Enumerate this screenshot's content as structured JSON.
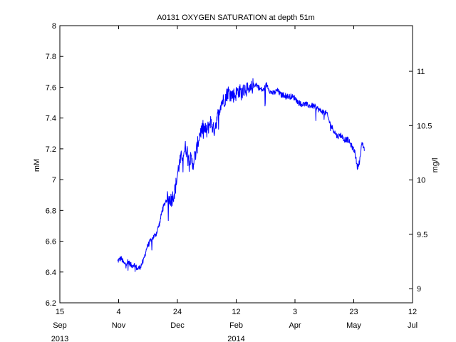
{
  "chart_data": {
    "type": "line",
    "title": "A0131 OXYGEN SATURATION at depth 51m",
    "ylabel": "mM",
    "ylabel_right": "mg/l",
    "xlabel": "",
    "ylim": [
      6.2,
      8.0
    ],
    "yticks": [
      "6.2",
      "6.4",
      "6.6",
      "6.8",
      "7",
      "7.2",
      "7.4",
      "7.6",
      "7.8",
      "8"
    ],
    "ylim_right": [
      8.87,
      11.42
    ],
    "yticks_right": [
      "9",
      "9.5",
      "10",
      "10.5",
      "11"
    ],
    "xlim": [
      "2013-09-15",
      "2014-07-12"
    ],
    "xticks": [
      {
        "date": "2013-09-15",
        "day": "15",
        "month": "Sep",
        "year": "2013"
      },
      {
        "date": "2013-11-04",
        "day": "4",
        "month": "Nov",
        "year": ""
      },
      {
        "date": "2013-12-24",
        "day": "24",
        "month": "Dec",
        "year": ""
      },
      {
        "date": "2014-02-12",
        "day": "12",
        "month": "Feb",
        "year": "2014"
      },
      {
        "date": "2014-04-03",
        "day": "3",
        "month": "Apr",
        "year": ""
      },
      {
        "date": "2014-05-23",
        "day": "23",
        "month": "May",
        "year": ""
      },
      {
        "date": "2014-07-12",
        "day": "12",
        "month": "Jul",
        "year": ""
      }
    ],
    "grid": false,
    "line_color": "#0000ff",
    "series": [
      {
        "x": [
          "2013-11-03",
          "2013-11-06",
          "2013-11-09",
          "2013-11-12",
          "2013-11-15",
          "2013-11-17",
          "2013-11-20",
          "2013-11-22",
          "2013-11-25",
          "2013-11-28",
          "2013-12-01",
          "2013-12-04",
          "2013-12-06",
          "2013-12-09",
          "2013-12-11",
          "2013-12-14",
          "2013-12-16",
          "2013-12-19",
          "2013-12-22",
          "2013-12-25",
          "2013-12-28",
          "2013-12-31",
          "2014-01-03",
          "2014-01-06",
          "2014-01-09",
          "2014-01-12",
          "2014-01-15",
          "2014-01-18",
          "2014-01-21",
          "2014-01-24",
          "2014-01-27",
          "2014-01-30",
          "2014-02-02",
          "2014-02-05",
          "2014-02-08",
          "2014-02-11",
          "2014-02-14",
          "2014-02-17",
          "2014-02-20",
          "2014-02-23",
          "2014-02-26",
          "2014-03-01",
          "2014-03-04",
          "2014-03-07",
          "2014-03-10",
          "2014-03-13",
          "2014-03-16",
          "2014-03-19",
          "2014-03-22",
          "2014-03-25",
          "2014-03-28",
          "2014-03-31",
          "2014-04-03",
          "2014-04-06",
          "2014-04-09",
          "2014-04-12",
          "2014-04-15",
          "2014-04-18",
          "2014-04-21",
          "2014-04-24",
          "2014-04-27",
          "2014-04-30",
          "2014-05-03",
          "2014-05-06",
          "2014-05-09",
          "2014-05-12",
          "2014-05-15",
          "2014-05-18",
          "2014-05-21",
          "2014-05-24",
          "2014-05-26",
          "2014-05-28",
          "2014-05-30",
          "2014-06-01"
        ],
        "y": [
          6.47,
          6.49,
          6.45,
          6.47,
          6.44,
          6.45,
          6.42,
          6.43,
          6.47,
          6.56,
          6.6,
          6.63,
          6.65,
          6.72,
          6.8,
          6.86,
          6.88,
          6.87,
          6.93,
          7.08,
          7.16,
          7.21,
          7.15,
          7.1,
          7.18,
          7.3,
          7.34,
          7.31,
          7.38,
          7.32,
          7.4,
          7.5,
          7.52,
          7.57,
          7.55,
          7.55,
          7.58,
          7.56,
          7.6,
          7.56,
          7.61,
          7.62,
          7.59,
          7.58,
          7.62,
          7.57,
          7.56,
          7.58,
          7.55,
          7.55,
          7.54,
          7.54,
          7.53,
          7.5,
          7.49,
          7.49,
          7.48,
          7.48,
          7.47,
          7.45,
          7.44,
          7.43,
          7.36,
          7.32,
          7.28,
          7.29,
          7.26,
          7.26,
          7.22,
          7.18,
          7.08,
          7.12,
          7.24,
          7.2
        ]
      }
    ]
  }
}
